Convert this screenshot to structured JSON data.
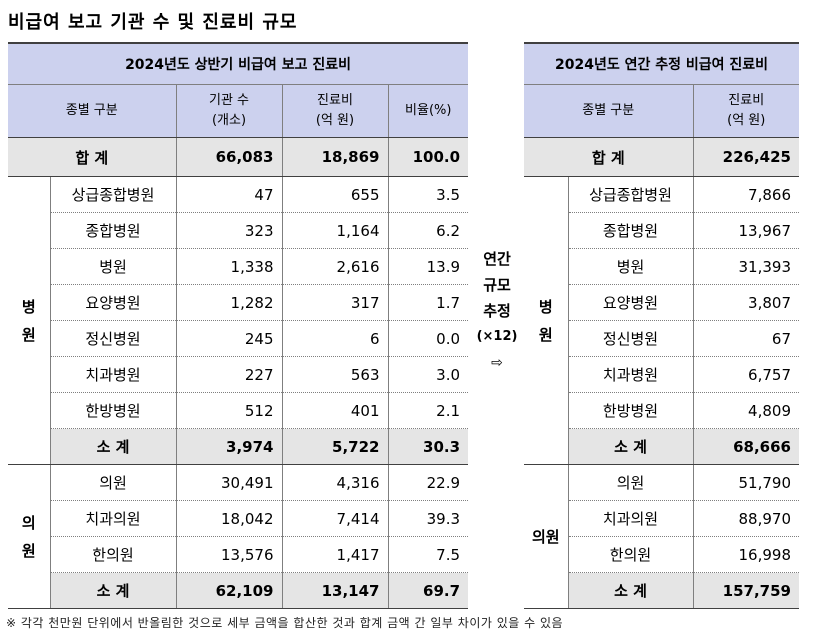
{
  "title": "비급여 보고 기관 수 및 진료비 규모",
  "left": {
    "header": "2024년도 상반기 비급여 보고 진료비",
    "col_category": "종별 구분",
    "col_count_l1": "기관 수",
    "col_count_l2": "(개소)",
    "col_cost_l1": "진료비",
    "col_cost_l2": "(억 원)",
    "col_ratio": "비율(%)",
    "total": {
      "label": "합 계",
      "count": "66,083",
      "cost": "18,869",
      "ratio": "100.0"
    },
    "hospital_group": {
      "l1": "병",
      "l2": "원"
    },
    "hospital_rows": [
      {
        "name": "상급종합병원",
        "count": "47",
        "cost": "655",
        "ratio": "3.5"
      },
      {
        "name": "종합병원",
        "count": "323",
        "cost": "1,164",
        "ratio": "6.2"
      },
      {
        "name": "병원",
        "count": "1,338",
        "cost": "2,616",
        "ratio": "13.9"
      },
      {
        "name": "요양병원",
        "count": "1,282",
        "cost": "317",
        "ratio": "1.7"
      },
      {
        "name": "정신병원",
        "count": "245",
        "cost": "6",
        "ratio": "0.0"
      },
      {
        "name": "치과병원",
        "count": "227",
        "cost": "563",
        "ratio": "3.0"
      },
      {
        "name": "한방병원",
        "count": "512",
        "cost": "401",
        "ratio": "2.1"
      }
    ],
    "hospital_subtotal": {
      "label": "소 계",
      "count": "3,974",
      "cost": "5,722",
      "ratio": "30.3"
    },
    "clinic_group": {
      "l1": "의",
      "l2": "원"
    },
    "clinic_rows": [
      {
        "name": "의원",
        "count": "30,491",
        "cost": "4,316",
        "ratio": "22.9"
      },
      {
        "name": "치과의원",
        "count": "18,042",
        "cost": "7,414",
        "ratio": "39.3"
      },
      {
        "name": "한의원",
        "count": "13,576",
        "cost": "1,417",
        "ratio": "7.5"
      }
    ],
    "clinic_subtotal": {
      "label": "소 계",
      "count": "62,109",
      "cost": "13,147",
      "ratio": "69.7"
    }
  },
  "middle": {
    "l1": "연간",
    "l2": "규모",
    "l3": "추정",
    "l4": "(×12)",
    "arrow": "⇨"
  },
  "right": {
    "header": "2024년도 연간 추정 비급여 진료비",
    "col_category": "종별 구분",
    "col_cost_l1": "진료비",
    "col_cost_l2": "(억 원)",
    "total": {
      "label": "합 계",
      "cost": "226,425"
    },
    "hospital_group": {
      "l1": "병",
      "l2": "원"
    },
    "hospital_rows": [
      {
        "name": "상급종합병원",
        "cost": "7,866"
      },
      {
        "name": "종합병원",
        "cost": "13,967"
      },
      {
        "name": "병원",
        "cost": "31,393"
      },
      {
        "name": "요양병원",
        "cost": "3,807"
      },
      {
        "name": "정신병원",
        "cost": "67"
      },
      {
        "name": "치과병원",
        "cost": "6,757"
      },
      {
        "name": "한방병원",
        "cost": "4,809"
      }
    ],
    "hospital_subtotal": {
      "label": "소 계",
      "cost": "68,666"
    },
    "clinic_group": "의원",
    "clinic_rows": [
      {
        "name": "의원",
        "cost": "51,790"
      },
      {
        "name": "치과의원",
        "cost": "88,970"
      },
      {
        "name": "한의원",
        "cost": "16,998"
      }
    ],
    "clinic_subtotal": {
      "label": "소 계",
      "cost": "157,759"
    }
  },
  "footnote": "※ 각각 천만원 단위에서 반올림한 것으로 세부 금액을 합산한 것과 합계 금액 간 일부 차이가 있을 수 있음"
}
